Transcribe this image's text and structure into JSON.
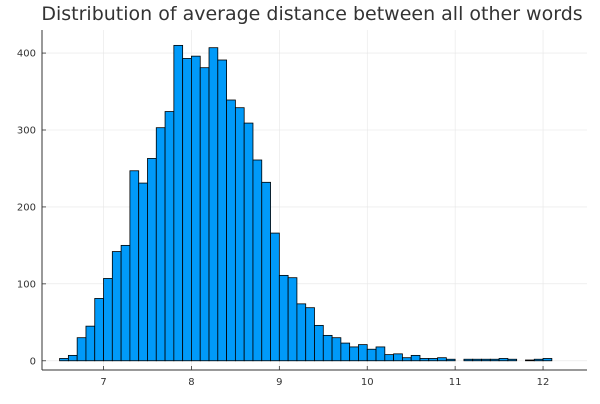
{
  "chart_data": {
    "type": "bar",
    "title": "Distribution of average distance between all other words",
    "xlabel": "",
    "ylabel": "",
    "bin_width": 0.1,
    "bin_starts": [
      6.5,
      6.6,
      6.7,
      6.8,
      6.9,
      7.0,
      7.1,
      7.2,
      7.3,
      7.4,
      7.5,
      7.6,
      7.7,
      7.8,
      7.9,
      8.0,
      8.1,
      8.2,
      8.3,
      8.4,
      8.5,
      8.6,
      8.7,
      8.8,
      8.9,
      9.0,
      9.1,
      9.2,
      9.3,
      9.4,
      9.5,
      9.6,
      9.7,
      9.8,
      9.9,
      10.0,
      10.1,
      10.2,
      10.3,
      10.4,
      10.5,
      10.6,
      10.7,
      10.8,
      10.9,
      11.0,
      11.1,
      11.2,
      11.3,
      11.4,
      11.5,
      11.6,
      11.7,
      11.8,
      11.9,
      12.0
    ],
    "values": [
      3,
      7,
      30,
      45,
      81,
      107,
      142,
      150,
      247,
      231,
      263,
      303,
      324,
      410,
      393,
      396,
      381,
      407,
      391,
      339,
      329,
      309,
      261,
      232,
      166,
      111,
      108,
      74,
      69,
      46,
      33,
      30,
      23,
      18,
      21,
      15,
      18,
      8,
      9,
      4,
      7,
      3,
      3,
      4,
      2,
      0,
      2,
      2,
      2,
      2,
      3,
      2,
      0,
      1,
      2,
      3
    ],
    "xlim": [
      6.3,
      12.5
    ],
    "ylim": [
      -12,
      430
    ],
    "x_ticks": [
      "7",
      "8",
      "9",
      "10",
      "11",
      "12"
    ],
    "y_ticks": [
      "0",
      "100",
      "200",
      "300",
      "400"
    ],
    "grid": true,
    "legend": "none",
    "colors": {
      "bar_fill": "#009AF9",
      "bar_stroke": "#000000",
      "grid": "#e6e6e6",
      "axis": "#333333"
    }
  }
}
